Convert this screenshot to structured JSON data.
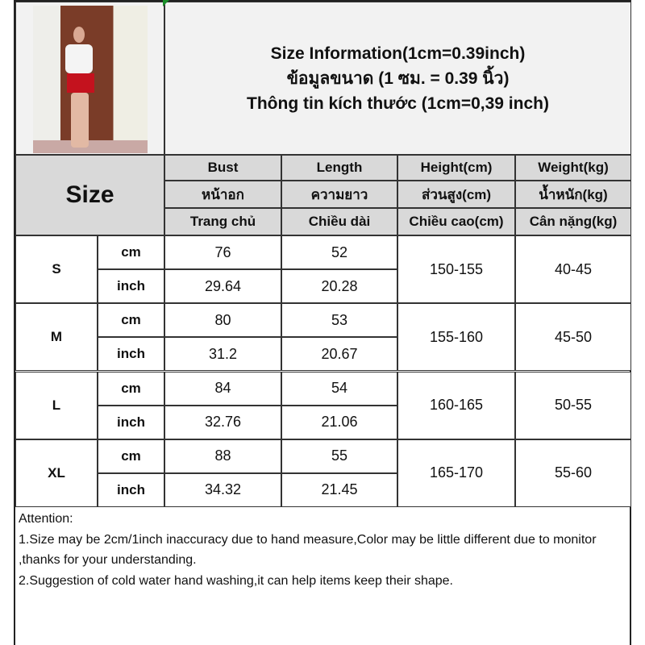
{
  "header": {
    "lines": [
      "Size Information(1cm=0.39inch)",
      "ข้อมูลขนาด (1 ซม. = 0.39 นิ้ว)",
      "Thông tin kích thước (1cm=0,39 inch)"
    ]
  },
  "table": {
    "size_label": "Size",
    "columns": [
      {
        "en": "Bust",
        "th": "หน้าอก",
        "vi": "Trang chủ"
      },
      {
        "en": "Length",
        "th": "ความยาว",
        "vi": "Chiều dài"
      },
      {
        "en": "Height(cm)",
        "th": "ส่วนสูง(cm)",
        "vi": "Chiều cao(cm)"
      },
      {
        "en": "Weight(kg)",
        "th": "น้ำหนัก(kg)",
        "vi": "Cân nặng(kg)"
      }
    ],
    "rows": [
      {
        "size": "S",
        "cm_unit": "cm",
        "inch_unit": "inch",
        "bust_cm": "76",
        "bust_in": "29.64",
        "length_cm": "52",
        "length_in": "20.28",
        "height": "150-155",
        "weight": "40-45"
      },
      {
        "size": "M",
        "cm_unit": "cm",
        "inch_unit": "inch",
        "bust_cm": "80",
        "bust_in": "31.2",
        "length_cm": "53",
        "length_in": "20.67",
        "height": "155-160",
        "weight": "45-50"
      },
      {
        "size": "L",
        "cm_unit": "cm",
        "inch_unit": "inch",
        "bust_cm": "84",
        "bust_in": "32.76",
        "length_cm": "54",
        "length_in": "21.06",
        "height": "160-165",
        "weight": "50-55"
      },
      {
        "size": "XL",
        "cm_unit": "cm",
        "inch_unit": "inch",
        "bust_cm": "88",
        "bust_in": "34.32",
        "length_cm": "55",
        "length_in": "21.45",
        "height": "165-170",
        "weight": "55-60"
      }
    ]
  },
  "attention": {
    "title": "Attention:",
    "note1": "1.Size may be 2cm/1inch inaccuracy due to hand measure,Color may be little different due to monitor ,thanks for your understanding.",
    "note2": "2.Suggestion of cold water hand washing,it can help items keep their shape."
  },
  "colors": {
    "header_bg": "#d9d9d9",
    "title_bg": "#f2f2f2",
    "skirt": "#c4121e"
  }
}
